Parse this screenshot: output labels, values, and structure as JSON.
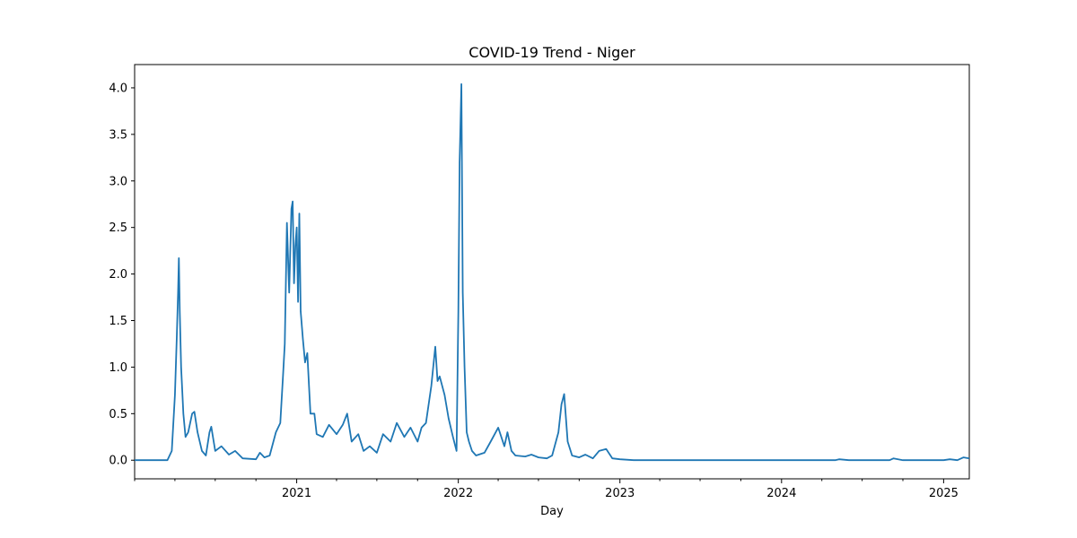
{
  "chart_data": {
    "type": "line",
    "title": "COVID-19 Trend - Niger",
    "xlabel": "Day",
    "ylabel": "",
    "xlim": [
      "2020-01-01",
      "2025-02-28"
    ],
    "ylim": [
      -0.2,
      4.25
    ],
    "grid": false,
    "legend": "none",
    "y_ticks": [
      0.0,
      0.5,
      1.0,
      1.5,
      2.0,
      2.5,
      3.0,
      3.5,
      4.0
    ],
    "y_tick_labels": [
      "0.0",
      "0.5",
      "1.0",
      "1.5",
      "2.0",
      "2.5",
      "3.0",
      "3.5",
      "4.0"
    ],
    "x_ticks": [
      "2021-01-01",
      "2022-01-01",
      "2023-01-01",
      "2024-01-01",
      "2025-01-01"
    ],
    "x_tick_labels": [
      "2021",
      "2022",
      "2023",
      "2024",
      "2025"
    ],
    "x_minor_ticks": [
      "2020-01-01",
      "2020-04-01",
      "2020-07-01",
      "2020-10-01",
      "2021-04-01",
      "2021-07-01",
      "2021-10-01",
      "2022-04-01",
      "2022-07-01",
      "2022-10-01",
      "2023-04-01",
      "2023-07-01",
      "2023-10-01",
      "2024-04-01",
      "2024-07-01",
      "2024-10-01"
    ],
    "series": [
      {
        "name": "",
        "color": "#1f77b4",
        "x": [
          "2020-01-01",
          "2020-03-15",
          "2020-03-25",
          "2020-04-01",
          "2020-04-05",
          "2020-04-08",
          "2020-04-10",
          "2020-04-12",
          "2020-04-15",
          "2020-04-20",
          "2020-04-25",
          "2020-05-01",
          "2020-05-10",
          "2020-05-15",
          "2020-05-22",
          "2020-06-01",
          "2020-06-10",
          "2020-06-18",
          "2020-06-22",
          "2020-07-01",
          "2020-07-15",
          "2020-08-01",
          "2020-08-15",
          "2020-09-01",
          "2020-10-01",
          "2020-10-10",
          "2020-10-20",
          "2020-11-01",
          "2020-11-15",
          "2020-11-25",
          "2020-12-01",
          "2020-12-05",
          "2020-12-10",
          "2020-12-15",
          "2020-12-20",
          "2020-12-23",
          "2020-12-26",
          "2020-12-29",
          "2021-01-01",
          "2021-01-04",
          "2021-01-07",
          "2021-01-10",
          "2021-01-15",
          "2021-01-20",
          "2021-01-25",
          "2021-02-01",
          "2021-02-10",
          "2021-02-15",
          "2021-03-01",
          "2021-03-15",
          "2021-04-01",
          "2021-04-15",
          "2021-04-25",
          "2021-05-05",
          "2021-05-20",
          "2021-06-01",
          "2021-06-15",
          "2021-07-01",
          "2021-07-15",
          "2021-08-01",
          "2021-08-15",
          "2021-09-01",
          "2021-09-15",
          "2021-10-01",
          "2021-10-10",
          "2021-10-20",
          "2021-11-01",
          "2021-11-10",
          "2021-11-15",
          "2021-11-20",
          "2021-12-01",
          "2021-12-10",
          "2021-12-20",
          "2021-12-28",
          "2022-01-01",
          "2022-01-04",
          "2022-01-08",
          "2022-01-11",
          "2022-01-15",
          "2022-01-20",
          "2022-01-25",
          "2022-02-01",
          "2022-02-10",
          "2022-03-01",
          "2022-03-15",
          "2022-04-01",
          "2022-04-15",
          "2022-04-22",
          "2022-05-01",
          "2022-05-10",
          "2022-06-01",
          "2022-06-15",
          "2022-07-01",
          "2022-07-20",
          "2022-08-01",
          "2022-08-15",
          "2022-08-22",
          "2022-08-28",
          "2022-09-05",
          "2022-09-15",
          "2022-10-01",
          "2022-10-15",
          "2022-11-01",
          "2022-11-15",
          "2022-12-01",
          "2022-12-15",
          "2023-01-01",
          "2023-02-01",
          "2023-04-01",
          "2024-01-01",
          "2024-05-01",
          "2024-05-10",
          "2024-06-01",
          "2024-09-01",
          "2024-09-10",
          "2024-10-01",
          "2025-01-01",
          "2025-01-15",
          "2025-02-01",
          "2025-02-15",
          "2025-02-28"
        ],
        "y": [
          0.0,
          0.0,
          0.1,
          0.7,
          1.3,
          1.8,
          2.17,
          1.6,
          1.0,
          0.5,
          0.25,
          0.3,
          0.5,
          0.52,
          0.3,
          0.1,
          0.05,
          0.3,
          0.36,
          0.1,
          0.15,
          0.06,
          0.1,
          0.02,
          0.01,
          0.08,
          0.03,
          0.05,
          0.3,
          0.4,
          0.9,
          1.25,
          2.55,
          1.8,
          2.7,
          2.78,
          1.9,
          2.3,
          2.5,
          1.7,
          2.65,
          1.6,
          1.3,
          1.05,
          1.15,
          0.5,
          0.5,
          0.28,
          0.25,
          0.38,
          0.28,
          0.38,
          0.5,
          0.2,
          0.28,
          0.1,
          0.15,
          0.08,
          0.28,
          0.2,
          0.4,
          0.25,
          0.35,
          0.2,
          0.35,
          0.4,
          0.8,
          1.22,
          0.85,
          0.9,
          0.7,
          0.45,
          0.25,
          0.1,
          1.6,
          3.2,
          4.04,
          1.8,
          1.0,
          0.3,
          0.2,
          0.1,
          0.05,
          0.08,
          0.2,
          0.35,
          0.15,
          0.3,
          0.1,
          0.05,
          0.04,
          0.06,
          0.03,
          0.02,
          0.05,
          0.3,
          0.6,
          0.71,
          0.2,
          0.05,
          0.03,
          0.06,
          0.02,
          0.1,
          0.12,
          0.02,
          0.01,
          0.0,
          0.0,
          0.0,
          0.0,
          0.01,
          0.0,
          0.0,
          0.02,
          0.0,
          0.0,
          0.01,
          0.0,
          0.03,
          0.02
        ]
      }
    ]
  }
}
